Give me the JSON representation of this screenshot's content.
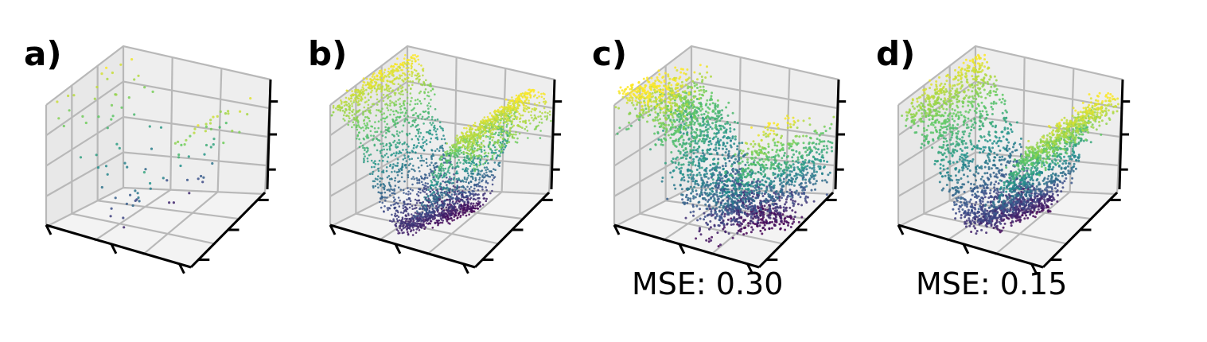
{
  "chart_data": [
    {
      "type": "scatter",
      "panel_label": "a)",
      "annotation": "",
      "projection": "3d",
      "grid": true,
      "colormap": "viridis",
      "density": "sparse",
      "surface": "sine-wave"
    },
    {
      "type": "scatter",
      "panel_label": "b)",
      "annotation": "",
      "projection": "3d",
      "grid": true,
      "colormap": "viridis",
      "density": "dense",
      "surface": "sine-wave"
    },
    {
      "type": "scatter",
      "panel_label": "c)",
      "annotation": "MSE: 0.30",
      "projection": "3d",
      "grid": true,
      "colormap": "viridis",
      "density": "dense",
      "surface": "noisy-reconstruction"
    },
    {
      "type": "scatter",
      "panel_label": "d)",
      "annotation": "MSE: 0.15",
      "projection": "3d",
      "grid": true,
      "colormap": "viridis",
      "density": "dense",
      "surface": "reconstruction"
    }
  ],
  "colors": {
    "pane_left": "#e8e8e8",
    "pane_back": "#eeeeee",
    "pane_floor": "#f3f3f3",
    "grid": "#b8b8b8",
    "axis": "#000000",
    "viridis": [
      "#440154",
      "#3b528b",
      "#21918c",
      "#5ec962",
      "#fde725"
    ]
  }
}
